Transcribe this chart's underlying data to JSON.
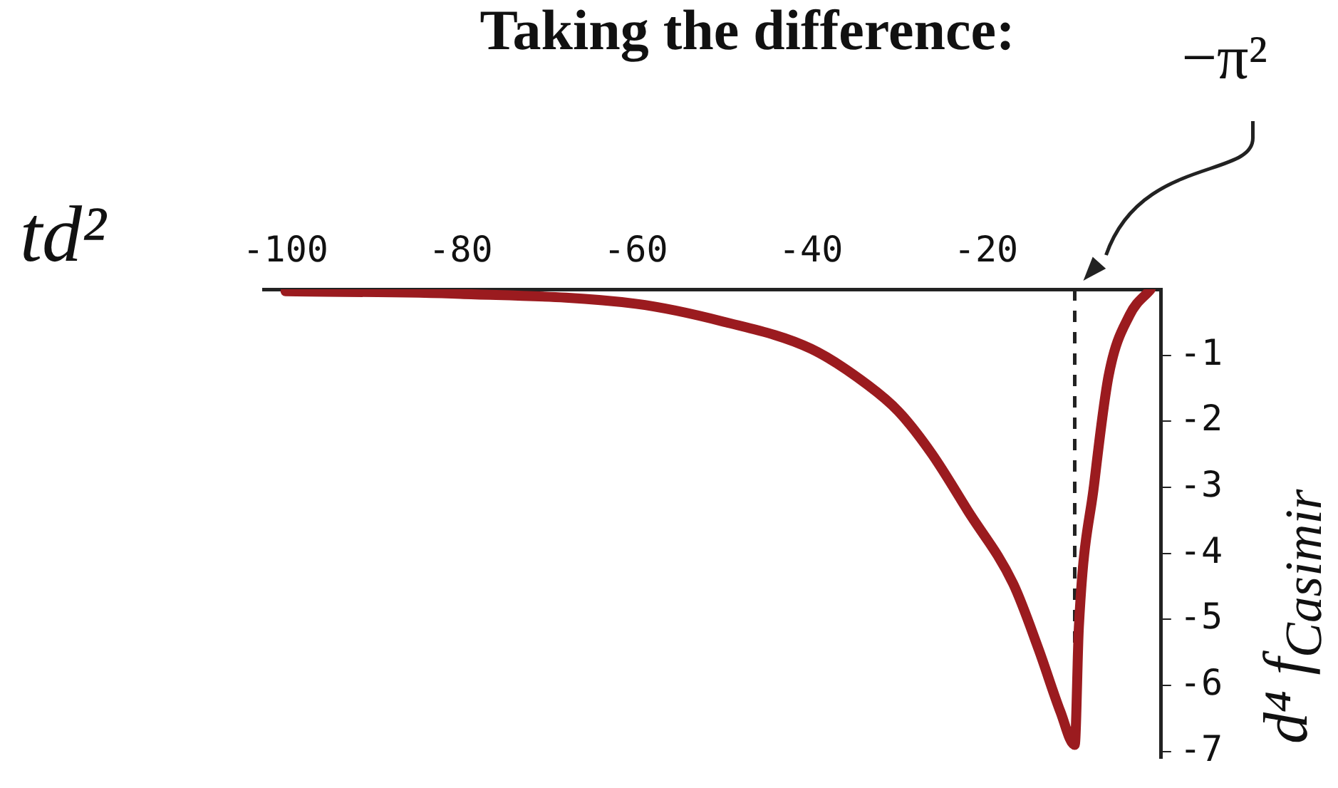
{
  "chart_data": {
    "type": "line",
    "title": "Taking the difference:",
    "xlabel": "td²",
    "ylabel": "d⁴ f$_{Casimir}$",
    "x": [
      -100,
      -80,
      -60,
      -50,
      -40,
      -33.5,
      -30,
      -26.2,
      -22.1,
      -16.9,
      -14,
      -11.5,
      -9.87,
      -9.4,
      -7.65,
      -6,
      -3.6,
      -1.2
    ],
    "series": [
      {
        "color": "#9b1b1f",
        "values": [
          -0.03,
          -0.07,
          -0.22,
          -0.49,
          -0.9,
          -1.45,
          -1.85,
          -2.49,
          -3.35,
          -4.46,
          -5.45,
          -6.4,
          -6.9,
          -5.12,
          -2.95,
          -1.31,
          -0.39,
          0
        ]
      }
    ],
    "xlim": [
      -102.5,
      0
    ],
    "xticks": [
      -100,
      -80,
      -60,
      -40,
      -20
    ],
    "ylim": [
      -7.1,
      0
    ],
    "yticks": [
      -1,
      -2,
      -3,
      -4,
      -5,
      -6,
      -7
    ],
    "grid": false,
    "legend": false,
    "marker": "none",
    "line_style": "solid",
    "ref_lines": [
      {
        "axis": "x",
        "value": -9.87,
        "line_style": "dashed",
        "color": "#222222"
      }
    ],
    "annotations": [
      "−π²"
    ]
  }
}
